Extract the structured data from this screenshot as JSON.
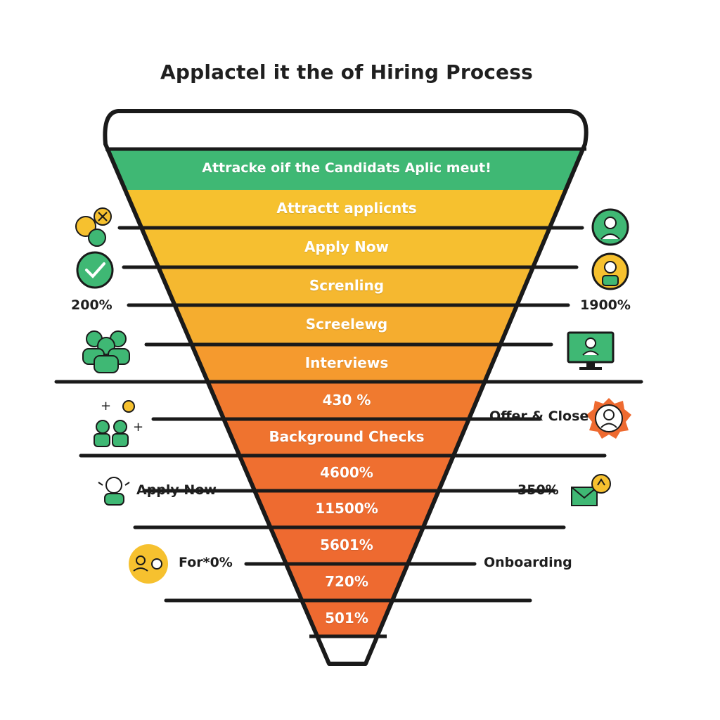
{
  "title": "Applactel it the of Hiring Process",
  "stages": [
    {
      "label": "Attracke oif the Candidats Aplic meut!",
      "color": "#3fb874"
    },
    {
      "label": "Attractt applicnts",
      "color": "#f6c12f"
    },
    {
      "label": "Apply Now",
      "color": "#f6bf30"
    },
    {
      "label": "Screnling",
      "color": "#f5b830"
    },
    {
      "label": "Screelewg",
      "color": "#f5ad2f"
    },
    {
      "label": "Interviews",
      "color": "#f59a2e"
    },
    {
      "label": "430 %",
      "color": "#f07a2f"
    },
    {
      "label": "Background Checks",
      "color": "#ef732f"
    },
    {
      "label": "4600%",
      "color": "#ef6f30"
    },
    {
      "label": "11500%",
      "color": "#ee6b30"
    },
    {
      "label": "5601%",
      "color": "#ee6a30"
    },
    {
      "label": "720%",
      "color": "#ee6a30"
    },
    {
      "label": "501%",
      "color": "#ee6a30"
    }
  ],
  "side_labels": {
    "left_1": "200%",
    "right_1": "1900%",
    "right_2": "Offer & Close",
    "left_2": "Apply Now",
    "right_3": "350%",
    "left_3": "For*0%",
    "right_4": "Onboarding"
  },
  "colors": {
    "green": "#3fb874",
    "yellow": "#f6c12f",
    "orange": "#ee6a30",
    "outline": "#1a1a1a"
  },
  "icons": [
    "tools-icon",
    "check-icon",
    "team-icon",
    "add-people-icon",
    "person-headset-icon",
    "person-chat-icon",
    "user-circle-icon",
    "user-circle-yellow-icon",
    "monitor-user-icon",
    "badge-user-icon",
    "mail-icon"
  ]
}
